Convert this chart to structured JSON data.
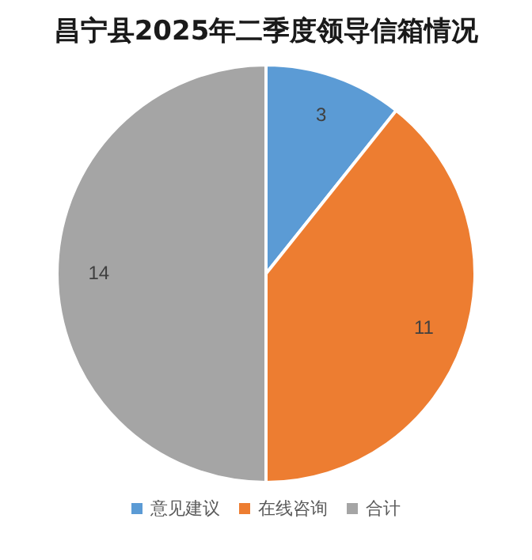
{
  "chart_data": {
    "type": "pie",
    "title": "昌宁县2025年二季度领导信箱情况",
    "categories": [
      "意见建议",
      "在线咨询",
      "合计"
    ],
    "values": [
      3,
      11,
      14
    ],
    "colors": [
      "#5b9bd5",
      "#ed7d31",
      "#a5a5a5"
    ],
    "data_labels": true,
    "legend": "bottom"
  }
}
